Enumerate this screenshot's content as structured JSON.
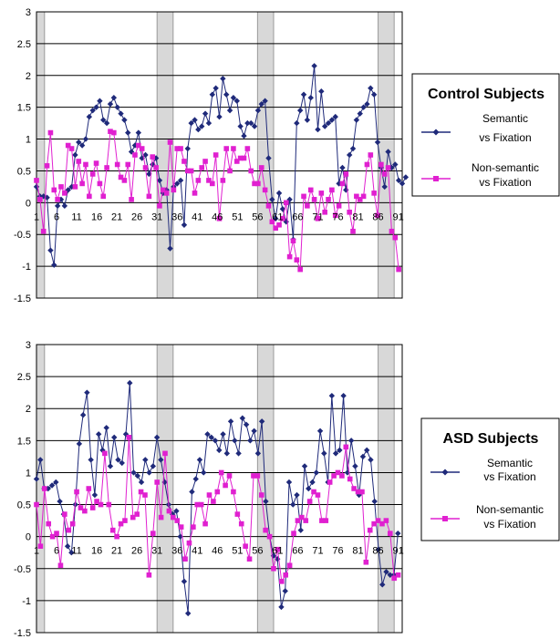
{
  "colors": {
    "semantic": "#1f2a7a",
    "nonsemantic": "#e020d0",
    "band": "#d8d8d8",
    "grid": "#000000"
  },
  "chart_data": [
    {
      "type": "line",
      "ylim": [
        -1.5,
        3
      ],
      "y_ticks": [
        "3",
        "2.5",
        "2",
        "1.5",
        "1",
        "0.5",
        "0",
        "-0.5",
        "-1",
        "-1.5"
      ],
      "x_ticks": [
        "1",
        "6",
        "11",
        "16",
        "21",
        "26",
        "31",
        "36",
        "41",
        "46",
        "51",
        "56",
        "61",
        "66",
        "71",
        "76",
        "81",
        "86",
        "91"
      ],
      "x_range": [
        1,
        92
      ],
      "shaded_ranges": [
        [
          1,
          3
        ],
        [
          31,
          35
        ],
        [
          56,
          60
        ],
        [
          86,
          90
        ]
      ],
      "grid": true,
      "legend_position": "right",
      "legend_title": "Control Subjects",
      "series": [
        {
          "name": "Semantic vs Fixation",
          "name_lines": [
            "Semantic",
            "vs Fixation"
          ],
          "values": [
            0.25,
            0.1,
            0.1,
            0.08,
            -0.75,
            -0.98,
            -0.05,
            0.05,
            -0.05,
            0.2,
            0.25,
            0.75,
            0.95,
            0.9,
            1.0,
            1.35,
            1.45,
            1.5,
            1.6,
            1.3,
            1.25,
            1.55,
            1.65,
            1.5,
            1.4,
            1.3,
            1.1,
            0.8,
            0.9,
            1.1,
            0.7,
            0.75,
            0.45,
            0.6,
            0.7,
            0.35,
            0.15,
            0.2,
            -0.72,
            0.25,
            0.3,
            0.35,
            -0.35,
            0.85,
            1.25,
            1.3,
            1.15,
            1.2,
            1.4,
            1.25,
            1.7,
            1.8,
            1.35,
            1.95,
            1.7,
            1.45,
            1.65,
            1.6,
            1.2,
            1.05,
            1.25,
            1.25,
            1.2,
            1.45,
            1.55,
            1.6,
            0.7,
            0.05,
            -0.25,
            0.15,
            -0.1,
            -0.3,
            0.05,
            -0.58,
            1.25,
            1.45,
            1.7,
            1.3,
            1.65,
            2.15,
            1.15,
            1.75,
            1.2,
            1.25,
            1.3,
            1.35,
            0.3,
            0.55,
            0.2,
            0.75,
            0.85,
            1.3,
            1.4,
            1.5,
            1.55,
            1.8,
            1.7,
            0.95,
            0.55,
            0.25,
            0.8,
            0.55,
            0.6,
            0.35,
            0.3,
            0.4
          ],
          "x_start": 1,
          "x_step": 0.875
        },
        {
          "name": "Non-semantic vs Fixation",
          "name_lines": [
            "Non-semantic",
            "vs Fixation"
          ],
          "values": [
            0.35,
            0.05,
            -0.45,
            0.58,
            1.1,
            0.2,
            0.05,
            0.25,
            0.15,
            0.9,
            0.85,
            0.25,
            0.65,
            0.3,
            0.6,
            0.1,
            0.45,
            0.62,
            0.3,
            0.1,
            0.55,
            1.12,
            1.1,
            0.6,
            0.4,
            0.35,
            0.6,
            0.05,
            0.75,
            0.9,
            0.85,
            0.55,
            0.1,
            0.72,
            0.55,
            -0.05,
            0.2,
            0.15,
            0.95,
            0.2,
            0.85,
            0.85,
            0.65,
            0.5,
            0.5,
            0.15,
            0.35,
            0.55,
            0.65,
            0.35,
            0.3,
            0.75,
            -0.25,
            0.35,
            0.85,
            0.5,
            0.85,
            0.65,
            0.7,
            0.7,
            0.85,
            0.5,
            0.3,
            0.3,
            0.55,
            0.2,
            -0.05,
            -0.3,
            -0.4,
            -0.35,
            -0.25,
            0.0,
            -0.85,
            -0.6,
            -0.9,
            -1.05,
            0.1,
            -0.05,
            0.2,
            0.05,
            -0.25,
            0.15,
            -0.15,
            0.05,
            0.2,
            -0.2,
            -0.05,
            0.3,
            0.45,
            -0.15,
            -0.45,
            0.1,
            0.05,
            0.1,
            0.6,
            0.75,
            0.15,
            -0.2,
            0.6,
            0.45,
            0.55,
            -0.45,
            -0.55,
            -1.05
          ],
          "x_start": 1,
          "x_step": 0.875
        }
      ]
    },
    {
      "type": "line",
      "ylim": [
        -1.5,
        3
      ],
      "y_ticks": [
        "3",
        "2.5",
        "2",
        "1.5",
        "1",
        "0.5",
        "0",
        "-0.5",
        "-1",
        "-1.5"
      ],
      "x_ticks": [
        "1",
        "6",
        "11",
        "16",
        "21",
        "26",
        "31",
        "36",
        "41",
        "46",
        "51",
        "56",
        "61",
        "66",
        "71",
        "76",
        "81",
        "86",
        "91"
      ],
      "x_range": [
        1,
        92
      ],
      "shaded_ranges": [
        [
          1,
          3
        ],
        [
          31,
          35
        ],
        [
          56,
          60
        ],
        [
          86,
          90
        ]
      ],
      "grid": true,
      "legend_position": "right",
      "legend_title": "ASD Subjects",
      "series": [
        {
          "name": "Semantic vs Fixation",
          "name_lines": [
            "Semantic",
            "vs Fixation"
          ],
          "values": [
            0.9,
            1.2,
            0.75,
            0.75,
            0.8,
            0.85,
            0.55,
            0.35,
            -0.15,
            -0.25,
            0.5,
            1.45,
            1.9,
            2.25,
            1.2,
            0.65,
            1.6,
            1.35,
            1.7,
            1.1,
            1.55,
            1.2,
            1.15,
            1.6,
            2.4,
            1.0,
            0.95,
            0.85,
            1.2,
            1.0,
            1.1,
            1.55,
            1.2,
            0.85,
            0.5,
            0.35,
            0.4,
            0.0,
            -0.7,
            -1.2,
            0.7,
            0.9,
            1.2,
            1.0,
            1.6,
            1.55,
            1.5,
            1.35,
            1.6,
            1.3,
            1.8,
            1.5,
            1.3,
            1.85,
            1.75,
            1.5,
            1.65,
            1.3,
            1.8,
            0.55,
            0.0,
            -0.3,
            -0.35,
            -1.1,
            -0.85,
            0.85,
            0.5,
            0.65,
            0.1,
            1.1,
            0.75,
            0.85,
            1.0,
            1.65,
            1.3,
            0.85,
            2.2,
            1.3,
            1.35,
            2.2,
            1.0,
            1.5,
            1.1,
            0.65,
            1.25,
            1.35,
            1.2,
            0.55,
            -0.2,
            -0.75,
            -0.55,
            -0.6,
            -0.6,
            0.05
          ],
          "x_start": 1,
          "x_step": 0.967
        },
        {
          "name": "Non-semantic vs Fixation",
          "name_lines": [
            "Non-semantic",
            "vs Fixation"
          ],
          "values": [
            0.5,
            -0.15,
            0.75,
            0.2,
            0.0,
            0.05,
            -0.45,
            0.35,
            0.1,
            0.2,
            0.7,
            0.45,
            0.4,
            0.75,
            0.45,
            0.55,
            0.5,
            1.3,
            0.5,
            0.1,
            0.0,
            0.2,
            0.25,
            1.55,
            0.3,
            0.35,
            0.7,
            0.65,
            -0.6,
            0.05,
            0.85,
            0.3,
            1.3,
            0.4,
            0.3,
            0.25,
            0.15,
            -0.35,
            -0.1,
            0.15,
            0.5,
            0.5,
            0.2,
            0.65,
            0.55,
            0.7,
            1.0,
            0.8,
            0.95,
            0.7,
            0.35,
            0.2,
            -0.15,
            -0.35,
            0.95,
            0.95,
            0.65,
            0.1,
            0.0,
            -0.5,
            -0.2,
            -0.7,
            -0.6,
            -0.45,
            0.05,
            0.25,
            0.3,
            0.25,
            0.55,
            0.7,
            0.65,
            0.25,
            0.25,
            0.85,
            0.95,
            1.0,
            0.95,
            1.4,
            0.9,
            0.75,
            0.7,
            0.7,
            -0.4,
            0.1,
            0.2,
            0.25,
            0.2,
            0.25,
            0.05,
            -0.65,
            -0.6
          ],
          "x_start": 1,
          "x_step": 1.0
        }
      ]
    }
  ]
}
